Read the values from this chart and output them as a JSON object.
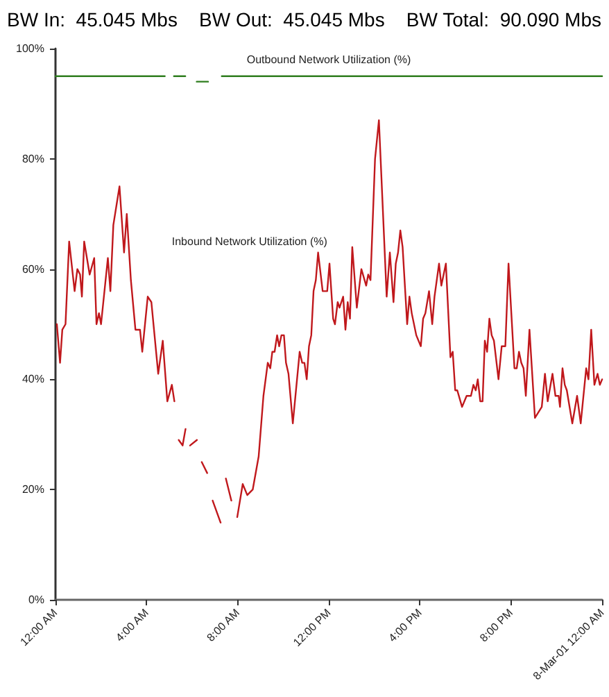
{
  "chart_data": {
    "type": "line",
    "title": "BW In:  45.045 Mbs    BW Out:  45.045 Mbs    BW Total:  90.090 Mbs",
    "xlim": [
      0,
      24
    ],
    "xticks": [
      {
        "value": 0,
        "label": "12:00 AM"
      },
      {
        "value": 4,
        "label": "4:00 AM"
      },
      {
        "value": 8,
        "label": "8:00 AM"
      },
      {
        "value": 12,
        "label": "12:00 PM"
      },
      {
        "value": 16,
        "label": "4:00 PM"
      },
      {
        "value": 20,
        "label": "8:00 PM"
      },
      {
        "value": 24,
        "label": "8-Mar-01 12:00 AM"
      }
    ],
    "ylim": [
      0,
      100
    ],
    "yticks": [
      {
        "value": 0,
        "label": "0%"
      },
      {
        "value": 20,
        "label": "20%"
      },
      {
        "value": 40,
        "label": "40%"
      },
      {
        "value": 60,
        "label": "60%"
      },
      {
        "value": 80,
        "label": "80%"
      },
      {
        "value": 100,
        "label": "100%"
      }
    ],
    "grid": false,
    "line_style": "solid",
    "series": [
      {
        "color": "#2e7d1e",
        "x": [
          0,
          1,
          2,
          3,
          4,
          4.8,
          5.0,
          5.2,
          5.7,
          5.9,
          6.2,
          6.7,
          7.0,
          7.3,
          7.8,
          8.5,
          9.5,
          10.5,
          11.5,
          12.5,
          13.5,
          14.5,
          15.5,
          16.5,
          17.5,
          18.5,
          19.5,
          20.5,
          21.5,
          22.5,
          23.5,
          24
        ],
        "values": [
          95,
          95,
          95,
          95,
          95,
          95,
          null,
          95,
          95,
          null,
          94,
          94,
          null,
          95,
          95,
          95,
          95,
          95,
          95,
          95,
          95,
          95,
          95,
          95,
          95,
          95,
          95,
          95,
          95,
          95,
          95,
          95
        ]
      },
      {
        "color": "#c0181c",
        "x": [
          0.06,
          0.2,
          0.3,
          0.44,
          0.6,
          0.84,
          0.96,
          1.08,
          1.16,
          1.26,
          1.5,
          1.7,
          1.8,
          1.91,
          2.0,
          2.3,
          2.41,
          2.54,
          2.81,
          3.01,
          3.13,
          3.31,
          3.51,
          3.71,
          3.81,
          4.05,
          4.21,
          4.51,
          4.71,
          4.91,
          5.11,
          5.22,
          5.3,
          5.41,
          5.58,
          5.71,
          5.8,
          5.91,
          6.21,
          6.3,
          6.42,
          6.66,
          6.8,
          6.9,
          7.25,
          7.3,
          7.48,
          7.72,
          7.85,
          7.98,
          8.22,
          8.42,
          8.66,
          8.92,
          9.13,
          9.32,
          9.43,
          9.52,
          9.62,
          9.73,
          9.82,
          9.92,
          10.03,
          10.12,
          10.23,
          10.42,
          10.72,
          10.83,
          10.93,
          11.03,
          11.13,
          11.23,
          11.33,
          11.43,
          11.53,
          11.73,
          11.93,
          12.03,
          12.19,
          12.27,
          12.39,
          12.47,
          12.63,
          12.73,
          12.83,
          12.93,
          13.03,
          13.23,
          13.43,
          13.64,
          13.73,
          13.83,
          14.03,
          14.2,
          14.54,
          14.68,
          14.84,
          14.94,
          15.04,
          15.14,
          15.24,
          15.44,
          15.54,
          15.64,
          15.84,
          16.04,
          16.14,
          16.24,
          16.4,
          16.54,
          16.64,
          16.84,
          16.94,
          17.14,
          17.34,
          17.44,
          17.55,
          17.64,
          17.85,
          18.05,
          18.15,
          18.24,
          18.35,
          18.45,
          18.54,
          18.65,
          18.75,
          18.85,
          18.95,
          19.05,
          19.15,
          19.25,
          19.45,
          19.59,
          19.75,
          19.89,
          20.15,
          20.25,
          20.35,
          20.45,
          20.55,
          20.65,
          20.81,
          21.05,
          21.35,
          21.49,
          21.61,
          21.82,
          21.95,
          22.09,
          22.15,
          22.26,
          22.36,
          22.45,
          22.69,
          22.9,
          23.06,
          23.3,
          23.4,
          23.52,
          23.66,
          23.8,
          23.9,
          24.0
        ],
        "values": [
          50,
          43,
          49,
          50,
          65,
          56,
          60,
          59,
          55,
          65,
          59,
          62,
          50,
          52,
          50,
          62,
          56,
          68,
          75,
          63,
          70,
          58,
          49,
          49,
          45,
          55,
          54,
          41,
          47,
          36,
          39,
          36,
          null,
          29,
          28,
          31,
          null,
          28,
          29,
          null,
          25,
          23,
          null,
          18,
          14,
          null,
          22,
          18,
          null,
          15,
          21,
          19,
          20,
          26,
          37,
          43,
          42,
          45,
          45,
          48,
          46,
          48,
          48,
          43,
          41,
          32,
          45,
          43,
          43,
          40,
          46,
          48,
          56,
          58,
          63,
          56,
          56,
          61,
          51,
          50,
          54,
          53,
          55,
          49,
          54,
          51,
          64,
          53,
          60,
          57,
          59,
          58,
          80,
          87,
          55,
          63,
          54,
          61,
          63,
          67,
          64,
          50,
          55,
          52,
          48,
          46,
          51,
          52,
          56,
          50,
          55,
          61,
          57,
          61,
          44,
          45,
          38,
          38,
          35,
          37,
          37,
          37,
          39,
          38,
          40,
          36,
          36,
          47,
          45,
          51,
          48,
          47,
          40,
          46,
          46,
          61,
          42,
          42,
          45,
          43,
          42,
          37,
          49,
          33,
          35,
          41,
          36,
          41,
          37,
          37,
          35,
          42,
          39,
          38,
          32,
          37,
          32,
          42,
          40,
          49,
          39,
          41,
          39,
          40
        ]
      }
    ],
    "annotations": [
      "Outbound Network Utilization (%)",
      "Inbound Network Utilization (%)"
    ]
  }
}
